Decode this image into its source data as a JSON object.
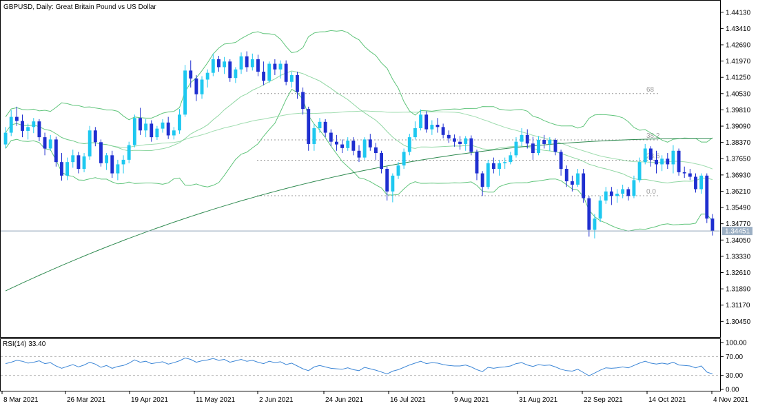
{
  "header": {
    "symbol_label": "GBPUSD, Daily:  Great Britain Pound vs US Dollar",
    "rsi_label": "RSI(14) 33.40"
  },
  "colors": {
    "bull_candle": "#1ec8f0",
    "bear_candle": "#1f2fd0",
    "bands": "#5fc47a",
    "ma_long": "#2f8a50",
    "rsi_line": "#3c86d6"
  },
  "chart_data": {
    "type": "candlestick",
    "symbol": "GBPUSD",
    "timeframe": "Daily",
    "price_axis": {
      "ticks": [
        "1.44130",
        "1.43410",
        "1.42690",
        "1.41970",
        "1.41250",
        "1.40530",
        "1.39810",
        "1.39090",
        "1.38370",
        "1.37650",
        "1.36930",
        "1.36210",
        "1.35490",
        "1.34770",
        "1.34050",
        "1.33330",
        "1.32610",
        "1.31890",
        "1.31170",
        "1.30450"
      ],
      "range": [
        1.2985,
        1.4455
      ]
    },
    "date_axis": {
      "ticks": [
        "8 Mar 2021",
        "26 Mar 2021",
        "19 Apr 2021",
        "11 May 2021",
        "2 Jun 2021",
        "24 Jun 2021",
        "16 Jul 2021",
        "9 Aug 2021",
        "31 Aug 2021",
        "22 Sep 2021",
        "14 Oct 2021",
        "4 Nov 2021"
      ]
    },
    "last_price": "1.34451",
    "fibonacci": [
      {
        "label": "68",
        "price": 1.4053
      },
      {
        "label": "38.2",
        "price": 1.3848
      },
      {
        "label": "23.6",
        "price": 1.3758
      },
      {
        "label": "0.0",
        "price": 1.3601
      }
    ],
    "candles": [
      [
        1.3828,
        1.3905,
        1.3812,
        1.388
      ],
      [
        1.388,
        1.398,
        1.3865,
        1.395
      ],
      [
        1.395,
        1.3995,
        1.391,
        1.3932
      ],
      [
        1.3932,
        1.396,
        1.386,
        1.3888
      ],
      [
        1.3888,
        1.392,
        1.385,
        1.3905
      ],
      [
        1.3905,
        1.3945,
        1.3878,
        1.393
      ],
      [
        1.393,
        1.394,
        1.3842,
        1.386
      ],
      [
        1.386,
        1.388,
        1.378,
        1.381
      ],
      [
        1.381,
        1.387,
        1.38,
        1.385
      ],
      [
        1.385,
        1.3862,
        1.373,
        1.375
      ],
      [
        1.375,
        1.379,
        1.3668,
        1.369
      ],
      [
        1.369,
        1.377,
        1.367,
        1.375
      ],
      [
        1.375,
        1.3805,
        1.3725,
        1.378
      ],
      [
        1.378,
        1.3795,
        1.37,
        1.372
      ],
      [
        1.372,
        1.379,
        1.3705,
        1.3775
      ],
      [
        1.3775,
        1.391,
        1.376,
        1.389
      ],
      [
        1.389,
        1.3905,
        1.382,
        1.3838
      ],
      [
        1.3838,
        1.385,
        1.373,
        1.3745
      ],
      [
        1.3745,
        1.379,
        1.3715,
        1.378
      ],
      [
        1.378,
        1.38,
        1.368,
        1.37
      ],
      [
        1.37,
        1.376,
        1.367,
        1.374
      ],
      [
        1.374,
        1.378,
        1.37,
        1.376
      ],
      [
        1.376,
        1.384,
        1.3745,
        1.3825
      ],
      [
        1.3825,
        1.396,
        1.3815,
        1.3945
      ],
      [
        1.3945,
        1.399,
        1.387,
        1.389
      ],
      [
        1.389,
        1.394,
        1.386,
        1.392
      ],
      [
        1.392,
        1.3935,
        1.384,
        1.386
      ],
      [
        1.386,
        1.391,
        1.3848,
        1.3898
      ],
      [
        1.3898,
        1.394,
        1.388,
        1.3925
      ],
      [
        1.3925,
        1.395,
        1.3852,
        1.3868
      ],
      [
        1.3868,
        1.3905,
        1.385,
        1.389
      ],
      [
        1.389,
        1.3985,
        1.3875,
        1.396
      ],
      [
        1.396,
        1.418,
        1.395,
        1.4155
      ],
      [
        1.4155,
        1.42,
        1.408,
        1.412
      ],
      [
        1.412,
        1.4135,
        1.402,
        1.405
      ],
      [
        1.405,
        1.413,
        1.403,
        1.4115
      ],
      [
        1.4115,
        1.416,
        1.408,
        1.4145
      ],
      [
        1.4145,
        1.423,
        1.413,
        1.4205
      ],
      [
        1.4205,
        1.422,
        1.415,
        1.417
      ],
      [
        1.417,
        1.4215,
        1.414,
        1.4195
      ],
      [
        1.4195,
        1.4205,
        1.4105,
        1.4122
      ],
      [
        1.4122,
        1.417,
        1.41,
        1.416
      ],
      [
        1.416,
        1.4235,
        1.414,
        1.4218
      ],
      [
        1.4218,
        1.424,
        1.415,
        1.417
      ],
      [
        1.417,
        1.423,
        1.4155,
        1.4205
      ],
      [
        1.4205,
        1.4225,
        1.413,
        1.415
      ],
      [
        1.415,
        1.4195,
        1.409,
        1.411
      ],
      [
        1.411,
        1.4195,
        1.41,
        1.4185
      ],
      [
        1.4185,
        1.4205,
        1.4135,
        1.416
      ],
      [
        1.416,
        1.42,
        1.412,
        1.4185
      ],
      [
        1.4185,
        1.42,
        1.409,
        1.4105
      ],
      [
        1.4105,
        1.415,
        1.408,
        1.4135
      ],
      [
        1.4135,
        1.415,
        1.403,
        1.406
      ],
      [
        1.406,
        1.408,
        1.396,
        1.3985
      ],
      [
        1.3985,
        1.3995,
        1.38,
        1.383
      ],
      [
        1.383,
        1.392,
        1.38,
        1.39
      ],
      [
        1.39,
        1.3945,
        1.388,
        1.3928
      ],
      [
        1.3928,
        1.394,
        1.386,
        1.388
      ],
      [
        1.388,
        1.3895,
        1.382,
        1.384
      ],
      [
        1.384,
        1.387,
        1.38,
        1.3828
      ],
      [
        1.3828,
        1.385,
        1.379,
        1.3812
      ],
      [
        1.3812,
        1.386,
        1.38,
        1.3845
      ],
      [
        1.3845,
        1.386,
        1.378,
        1.38
      ],
      [
        1.38,
        1.3825,
        1.375,
        1.377
      ],
      [
        1.377,
        1.386,
        1.376,
        1.385
      ],
      [
        1.385,
        1.3875,
        1.38,
        1.3815
      ],
      [
        1.3815,
        1.3835,
        1.376,
        1.379
      ],
      [
        1.379,
        1.38,
        1.37,
        1.372
      ],
      [
        1.372,
        1.373,
        1.358,
        1.362
      ],
      [
        1.362,
        1.37,
        1.3572,
        1.369
      ],
      [
        1.369,
        1.375,
        1.3675,
        1.3735
      ],
      [
        1.3735,
        1.381,
        1.372,
        1.3795
      ],
      [
        1.3795,
        1.3875,
        1.378,
        1.386
      ],
      [
        1.386,
        1.393,
        1.385,
        1.39
      ],
      [
        1.39,
        1.3983,
        1.389,
        1.396
      ],
      [
        1.396,
        1.3975,
        1.388,
        1.3895
      ],
      [
        1.3895,
        1.3935,
        1.387,
        1.3915
      ],
      [
        1.3915,
        1.3945,
        1.388,
        1.3905
      ],
      [
        1.3905,
        1.392,
        1.3855,
        1.387
      ],
      [
        1.387,
        1.389,
        1.3835,
        1.3855
      ],
      [
        1.3855,
        1.3872,
        1.3818,
        1.384
      ],
      [
        1.384,
        1.3865,
        1.3805,
        1.383
      ],
      [
        1.383,
        1.3865,
        1.38,
        1.3855
      ],
      [
        1.3855,
        1.3868,
        1.378,
        1.3795
      ],
      [
        1.3795,
        1.3805,
        1.367,
        1.37
      ],
      [
        1.37,
        1.371,
        1.36,
        1.364
      ],
      [
        1.364,
        1.376,
        1.363,
        1.3745
      ],
      [
        1.3745,
        1.377,
        1.37,
        1.372
      ],
      [
        1.372,
        1.376,
        1.369,
        1.3745
      ],
      [
        1.3745,
        1.377,
        1.372,
        1.375
      ],
      [
        1.375,
        1.3795,
        1.374,
        1.378
      ],
      [
        1.378,
        1.386,
        1.377,
        1.384
      ],
      [
        1.384,
        1.39,
        1.382,
        1.387
      ],
      [
        1.387,
        1.3895,
        1.381,
        1.3832
      ],
      [
        1.3832,
        1.3862,
        1.376,
        1.379
      ],
      [
        1.379,
        1.3865,
        1.378,
        1.3848
      ],
      [
        1.3848,
        1.387,
        1.381,
        1.383
      ],
      [
        1.383,
        1.386,
        1.38,
        1.3848
      ],
      [
        1.3848,
        1.3855,
        1.378,
        1.3795
      ],
      [
        1.3795,
        1.3805,
        1.369,
        1.372
      ],
      [
        1.372,
        1.3735,
        1.364,
        1.3665
      ],
      [
        1.3665,
        1.369,
        1.362,
        1.365
      ],
      [
        1.365,
        1.372,
        1.364,
        1.37
      ],
      [
        1.37,
        1.372,
        1.357,
        1.359
      ],
      [
        1.359,
        1.36,
        1.342,
        1.345
      ],
      [
        1.345,
        1.352,
        1.3412,
        1.35
      ],
      [
        1.35,
        1.36,
        1.3485,
        1.358
      ],
      [
        1.358,
        1.364,
        1.3565,
        1.362
      ],
      [
        1.362,
        1.364,
        1.356,
        1.36
      ],
      [
        1.36,
        1.363,
        1.357,
        1.361
      ],
      [
        1.361,
        1.365,
        1.359,
        1.363
      ],
      [
        1.363,
        1.364,
        1.358,
        1.36
      ],
      [
        1.36,
        1.369,
        1.359,
        1.367
      ],
      [
        1.367,
        1.377,
        1.366,
        1.375
      ],
      [
        1.375,
        1.383,
        1.374,
        1.381
      ],
      [
        1.381,
        1.382,
        1.373,
        1.376
      ],
      [
        1.376,
        1.38,
        1.37,
        1.374
      ],
      [
        1.374,
        1.378,
        1.371,
        1.3765
      ],
      [
        1.3765,
        1.379,
        1.372,
        1.374
      ],
      [
        1.374,
        1.3825,
        1.37,
        1.38
      ],
      [
        1.38,
        1.381,
        1.369,
        1.3705
      ],
      [
        1.3705,
        1.373,
        1.368,
        1.37
      ],
      [
        1.37,
        1.372,
        1.367,
        1.3685
      ],
      [
        1.3685,
        1.37,
        1.3615,
        1.363
      ],
      [
        1.363,
        1.37,
        1.361,
        1.369
      ],
      [
        1.369,
        1.37,
        1.348,
        1.35
      ],
      [
        1.35,
        1.352,
        1.3425,
        1.3445
      ]
    ],
    "rsi": {
      "name": "RSI(14)",
      "current": 33.4,
      "levels": [
        30,
        70
      ],
      "axis_ticks": [
        "100.00",
        "70.00",
        "30.00",
        "0.00"
      ],
      "values": [
        55,
        58,
        62,
        60,
        56,
        58,
        61,
        55,
        57,
        50,
        45,
        49,
        53,
        48,
        52,
        58,
        54,
        47,
        51,
        45,
        49,
        51,
        56,
        63,
        58,
        60,
        55,
        57,
        59,
        54,
        57,
        61,
        67,
        64,
        58,
        61,
        63,
        66,
        62,
        64,
        58,
        61,
        64,
        60,
        62,
        58,
        55,
        60,
        57,
        59,
        53,
        56,
        50,
        44,
        40,
        48,
        51,
        48,
        45,
        44,
        43,
        46,
        42,
        40,
        47,
        44,
        41,
        37,
        33,
        39,
        42,
        47,
        52,
        56,
        60,
        55,
        57,
        56,
        53,
        51,
        50,
        50,
        52,
        48,
        42,
        38,
        47,
        45,
        47,
        48,
        50,
        55,
        57,
        52,
        49,
        53,
        51,
        52,
        48,
        43,
        40,
        39,
        43,
        36,
        29,
        35,
        41,
        46,
        45,
        46,
        48,
        46,
        51,
        56,
        60,
        56,
        54,
        56,
        54,
        58,
        52,
        51,
        50,
        46,
        50,
        37,
        33
      ]
    }
  }
}
